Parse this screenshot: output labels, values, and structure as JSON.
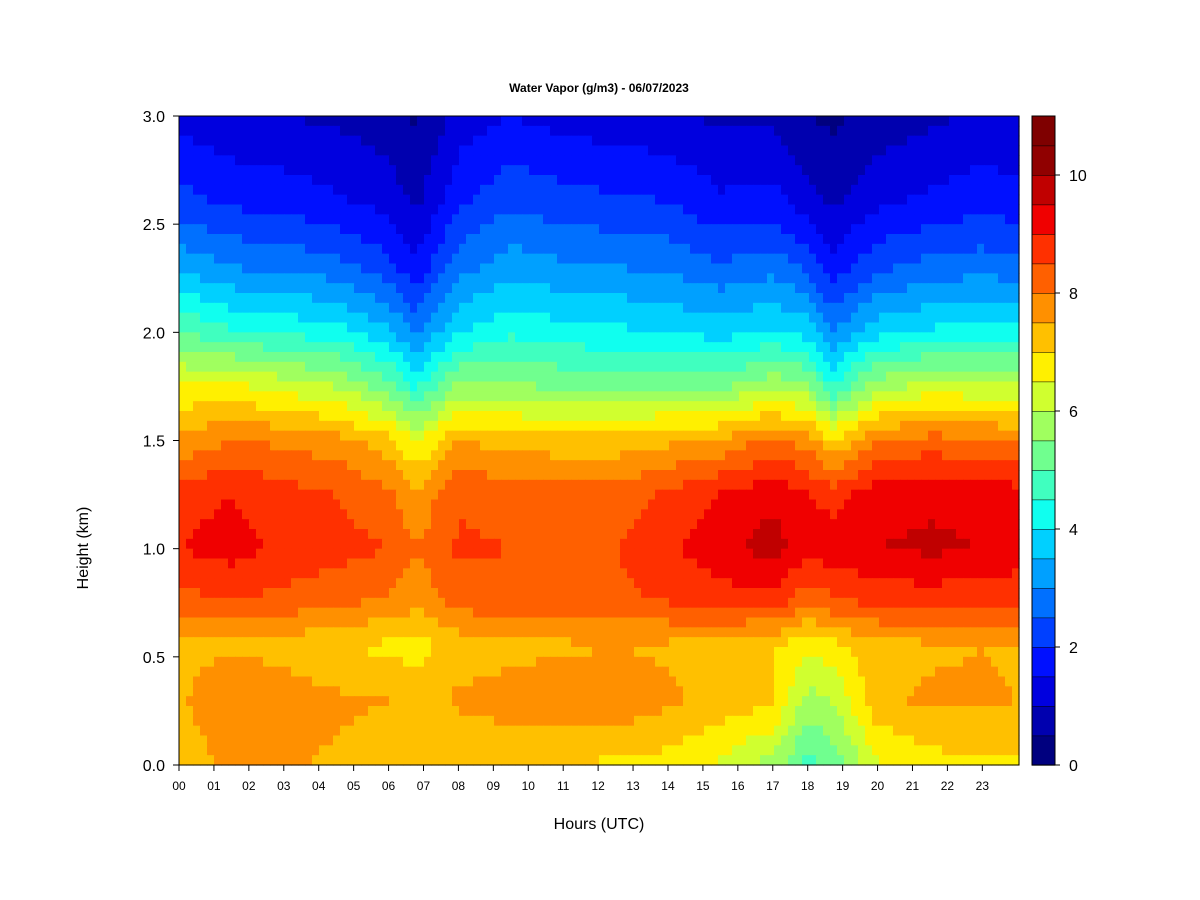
{
  "chart_data": {
    "type": "heatmap",
    "title": "Water Vapor (g/m3) - 06/07/2023",
    "xlabel": "Hours (UTC)",
    "ylabel": "Height (km)",
    "x_ticks": [
      "00",
      "01",
      "02",
      "03",
      "04",
      "05",
      "06",
      "07",
      "08",
      "09",
      "10",
      "11",
      "12",
      "13",
      "14",
      "15",
      "16",
      "17",
      "18",
      "19",
      "20",
      "21",
      "22",
      "23"
    ],
    "y_ticks": [
      "0.0",
      "0.5",
      "1.0",
      "1.5",
      "2.0",
      "2.5",
      "3.0"
    ],
    "xlim": [
      0,
      24
    ],
    "ylim": [
      0,
      3
    ],
    "colorbar": {
      "min": 0,
      "max": 11,
      "levels": 11,
      "ticks": [
        "0",
        "2",
        "4",
        "6",
        "8",
        "10"
      ],
      "colors": [
        "#00007F",
        "#0000AF",
        "#0000DF",
        "#0010FF",
        "#0040FF",
        "#0070FF",
        "#00A0FF",
        "#00D0FF",
        "#10FFEF",
        "#40FFBF",
        "#70FF8F",
        "#A0FF5F",
        "#D0FF2F",
        "#FFF000",
        "#FFC000",
        "#FF9000",
        "#FF6000",
        "#FF3000",
        "#F00000",
        "#C00000",
        "#900000",
        "#7F0000"
      ]
    },
    "grid": false,
    "legend": "colorbar-right",
    "profile_heights_km": [
      0.0,
      0.3,
      0.55,
      0.75,
      1.0,
      1.25,
      1.5,
      1.75,
      2.0,
      2.3,
      2.6,
      3.0
    ],
    "profiles": [
      {
        "hour": 0.0,
        "values": [
          7.2,
          7.4,
          7.3,
          8.3,
          9.0,
          8.8,
          7.6,
          6.6,
          5.0,
          3.4,
          2.2,
          1.3
        ]
      },
      {
        "hour": 1.5,
        "values": [
          7.6,
          8.0,
          7.4,
          8.5,
          9.2,
          9.0,
          8.0,
          6.6,
          4.6,
          3.0,
          1.9,
          1.1
        ]
      },
      {
        "hour": 3.0,
        "values": [
          7.6,
          7.8,
          7.3,
          8.3,
          8.9,
          8.7,
          7.9,
          6.3,
          4.4,
          2.9,
          1.8,
          1.0
        ]
      },
      {
        "hour": 4.5,
        "values": [
          7.4,
          7.6,
          7.0,
          8.1,
          8.7,
          8.5,
          7.7,
          6.0,
          4.2,
          2.7,
          1.6,
          0.9
        ]
      },
      {
        "hour": 6.0,
        "values": [
          7.3,
          7.5,
          6.9,
          7.9,
          8.5,
          8.1,
          7.2,
          5.2,
          3.6,
          2.2,
          1.3,
          0.7
        ]
      },
      {
        "hour": 6.8,
        "values": [
          7.1,
          7.2,
          6.8,
          7.6,
          8.0,
          7.6,
          6.4,
          4.4,
          2.9,
          1.6,
          0.9,
          0.4
        ]
      },
      {
        "hour": 8.0,
        "values": [
          7.0,
          7.6,
          7.2,
          8.2,
          8.6,
          8.4,
          7.5,
          5.6,
          4.0,
          2.8,
          1.9,
          1.2
        ]
      },
      {
        "hour": 9.5,
        "values": [
          7.0,
          7.8,
          7.3,
          8.3,
          8.5,
          8.3,
          7.3,
          5.6,
          4.4,
          3.3,
          2.4,
          1.5
        ]
      },
      {
        "hour": 11.0,
        "values": [
          7.0,
          7.9,
          7.4,
          8.3,
          8.4,
          8.2,
          7.2,
          5.4,
          4.2,
          3.1,
          2.2,
          1.3
        ]
      },
      {
        "hour": 12.5,
        "values": [
          6.9,
          7.9,
          7.5,
          8.4,
          8.5,
          8.2,
          7.2,
          5.4,
          4.1,
          3.0,
          2.1,
          1.2
        ]
      },
      {
        "hour": 14.0,
        "values": [
          6.8,
          7.6,
          7.4,
          8.5,
          8.9,
          8.6,
          7.4,
          5.5,
          4.0,
          2.9,
          2.0,
          1.1
        ]
      },
      {
        "hour": 15.5,
        "values": [
          6.4,
          7.3,
          7.2,
          8.7,
          9.4,
          9.0,
          7.6,
          5.4,
          3.8,
          2.6,
          1.6,
          0.9
        ]
      },
      {
        "hour": 17.0,
        "values": [
          5.8,
          7.1,
          7.0,
          8.8,
          9.7,
          9.4,
          8.1,
          5.9,
          4.1,
          2.8,
          1.7,
          0.9
        ]
      },
      {
        "hour": 18.0,
        "values": [
          4.8,
          5.8,
          6.6,
          8.0,
          9.3,
          9.0,
          7.8,
          5.6,
          3.8,
          2.4,
          1.2,
          0.5
        ]
      },
      {
        "hour": 18.7,
        "values": [
          5.2,
          6.0,
          6.8,
          8.4,
          9.3,
          8.8,
          7.0,
          4.5,
          3.0,
          1.7,
          0.9,
          0.4
        ]
      },
      {
        "hour": 20.0,
        "values": [
          6.4,
          7.4,
          7.3,
          8.6,
          9.5,
          9.3,
          8.0,
          5.8,
          3.8,
          2.4,
          1.4,
          0.7
        ]
      },
      {
        "hour": 21.5,
        "values": [
          6.8,
          7.6,
          7.4,
          8.7,
          9.6,
          9.4,
          8.2,
          6.2,
          4.1,
          2.7,
          1.6,
          0.9
        ]
      },
      {
        "hour": 23.0,
        "values": [
          6.9,
          7.6,
          7.5,
          8.6,
          9.5,
          9.3,
          8.1,
          6.1,
          4.3,
          2.8,
          1.8,
          1.1
        ]
      },
      {
        "hour": 24.0,
        "values": [
          6.9,
          7.5,
          7.4,
          8.5,
          9.4,
          9.2,
          8.0,
          6.0,
          4.2,
          2.7,
          1.7,
          1.0
        ]
      }
    ]
  }
}
